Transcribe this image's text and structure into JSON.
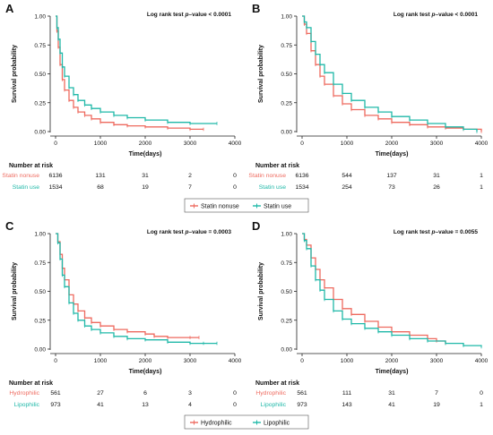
{
  "colors": {
    "red": "#EE6A5F",
    "teal": "#1FB8A8",
    "axis": "#222222"
  },
  "axis_titles": {
    "y": "Survival probability",
    "x": "Time(days)"
  },
  "risk_table_title": "Number at risk",
  "legends": {
    "top": [
      "Statin nonuse",
      "Statin use"
    ],
    "bottom": [
      "Hydrophilic",
      "Lipophilic"
    ]
  },
  "chart_data": [
    {
      "panel": "A",
      "type": "line",
      "title": "Log rank test p-value < 0.0001",
      "pvalue_prefix": "Log rank test ",
      "pvalue_italic": "p",
      "pvalue_suffix": "–value < 0.0001",
      "xlabel": "Time(days)",
      "ylabel": "Survival probability",
      "xlim": [
        0,
        4000
      ],
      "ylim": [
        0,
        1
      ],
      "xticks": [
        0,
        1000,
        2000,
        3000,
        4000
      ],
      "yticks": [
        "0.00",
        "0.25",
        "0.50",
        "0.75",
        "1.00"
      ],
      "series": [
        {
          "name": "Statin nonuse",
          "color": "red",
          "x": [
            0,
            30,
            60,
            100,
            150,
            200,
            300,
            400,
            500,
            650,
            800,
            1000,
            1300,
            1600,
            2000,
            2500,
            3000,
            3300
          ],
          "y": [
            1.0,
            0.87,
            0.73,
            0.58,
            0.45,
            0.36,
            0.27,
            0.21,
            0.17,
            0.14,
            0.11,
            0.08,
            0.06,
            0.05,
            0.04,
            0.03,
            0.02,
            0.02
          ]
        },
        {
          "name": "Statin use",
          "color": "teal",
          "x": [
            0,
            30,
            60,
            100,
            150,
            200,
            300,
            400,
            500,
            650,
            800,
            1000,
            1300,
            1600,
            2000,
            2500,
            3000,
            3600
          ],
          "y": [
            1.0,
            0.9,
            0.8,
            0.68,
            0.56,
            0.48,
            0.38,
            0.32,
            0.27,
            0.23,
            0.2,
            0.17,
            0.14,
            0.12,
            0.1,
            0.08,
            0.07,
            0.07
          ]
        }
      ],
      "risk_table": {
        "rows": [
          {
            "label": "Statin nonuse",
            "color": "red",
            "values": [
              "6136",
              "131",
              "31",
              "2",
              "0"
            ]
          },
          {
            "label": "Statin use",
            "color": "teal",
            "values": [
              "1534",
              "68",
              "19",
              "7",
              "0"
            ]
          }
        ]
      }
    },
    {
      "panel": "B",
      "type": "line",
      "title": "Log rank test p-value < 0.0001",
      "pvalue_prefix": "Log rank test ",
      "pvalue_italic": "p",
      "pvalue_suffix": "–value < 0.0001",
      "xlabel": "Time(days)",
      "ylabel": "Survival probability",
      "xlim": [
        0,
        4000
      ],
      "ylim": [
        0,
        1
      ],
      "xticks": [
        0,
        1000,
        2000,
        3000,
        4000
      ],
      "yticks": [
        "0.00",
        "0.25",
        "0.50",
        "0.75",
        "1.00"
      ],
      "series": [
        {
          "name": "Statin nonuse",
          "color": "red",
          "x": [
            0,
            50,
            100,
            200,
            300,
            400,
            500,
            700,
            900,
            1100,
            1400,
            1700,
            2000,
            2400,
            2800,
            3200,
            3600,
            4000
          ],
          "y": [
            1.0,
            0.93,
            0.85,
            0.7,
            0.58,
            0.48,
            0.41,
            0.31,
            0.24,
            0.19,
            0.14,
            0.11,
            0.08,
            0.06,
            0.04,
            0.03,
            0.02,
            0.0
          ]
        },
        {
          "name": "Statin use",
          "color": "teal",
          "x": [
            0,
            50,
            100,
            200,
            300,
            400,
            500,
            700,
            900,
            1100,
            1400,
            1700,
            2000,
            2400,
            2800,
            3200,
            3600,
            3900
          ],
          "y": [
            1.0,
            0.95,
            0.9,
            0.78,
            0.67,
            0.58,
            0.51,
            0.41,
            0.33,
            0.27,
            0.21,
            0.17,
            0.13,
            0.1,
            0.07,
            0.04,
            0.02,
            0.0
          ]
        }
      ],
      "risk_table": {
        "rows": [
          {
            "label": "Statin nonuse",
            "color": "red",
            "values": [
              "6136",
              "544",
              "137",
              "31",
              "1"
            ]
          },
          {
            "label": "Statin use",
            "color": "teal",
            "values": [
              "1534",
              "254",
              "73",
              "26",
              "1"
            ]
          }
        ]
      }
    },
    {
      "panel": "C",
      "type": "line",
      "title": "Log rank test p-value = 0.0003",
      "pvalue_prefix": "Log rank test ",
      "pvalue_italic": "p",
      "pvalue_suffix": "–value = 0.0003",
      "xlabel": "Time(days)",
      "ylabel": "Survival probability",
      "xlim": [
        0,
        4000
      ],
      "ylim": [
        0,
        1
      ],
      "xticks": [
        0,
        1000,
        2000,
        3000,
        4000
      ],
      "yticks": [
        "0.00",
        "0.25",
        "0.50",
        "0.75",
        "1.00"
      ],
      "series": [
        {
          "name": "Hydrophilic",
          "color": "red",
          "x": [
            0,
            50,
            100,
            150,
            200,
            300,
            400,
            500,
            650,
            800,
            1000,
            1300,
            1600,
            2000,
            2200,
            2500,
            3000,
            3200
          ],
          "y": [
            1.0,
            0.93,
            0.82,
            0.7,
            0.6,
            0.47,
            0.39,
            0.33,
            0.27,
            0.23,
            0.2,
            0.17,
            0.15,
            0.13,
            0.11,
            0.1,
            0.1,
            0.1
          ]
        },
        {
          "name": "Lipophilic",
          "color": "teal",
          "x": [
            0,
            50,
            100,
            150,
            200,
            300,
            400,
            500,
            650,
            800,
            1000,
            1300,
            1600,
            2000,
            2500,
            3000,
            3300,
            3600
          ],
          "y": [
            1.0,
            0.92,
            0.78,
            0.64,
            0.54,
            0.4,
            0.31,
            0.25,
            0.2,
            0.17,
            0.14,
            0.11,
            0.09,
            0.08,
            0.06,
            0.05,
            0.05,
            0.05
          ]
        }
      ],
      "risk_table": {
        "rows": [
          {
            "label": "Hydrophilic",
            "color": "red",
            "values": [
              "561",
              "27",
              "6",
              "3",
              "0"
            ]
          },
          {
            "label": "Lipophilic",
            "color": "teal",
            "values": [
              "973",
              "41",
              "13",
              "4",
              "0"
            ]
          }
        ]
      }
    },
    {
      "panel": "D",
      "type": "line",
      "title": "Log rank test p-value = 0.0055",
      "pvalue_prefix": "Log rank test ",
      "pvalue_italic": "p",
      "pvalue_suffix": "–value = 0.0055",
      "xlabel": "Time(days)",
      "ylabel": "Survival probability",
      "xlim": [
        0,
        4000
      ],
      "ylim": [
        0,
        1
      ],
      "xticks": [
        0,
        1000,
        2000,
        3000,
        4000
      ],
      "yticks": [
        "0.00",
        "0.25",
        "0.50",
        "0.75",
        "1.00"
      ],
      "series": [
        {
          "name": "Hydrophilic",
          "color": "red",
          "x": [
            0,
            50,
            100,
            200,
            300,
            400,
            500,
            700,
            900,
            1100,
            1400,
            1700,
            2000,
            2400,
            2800,
            3000,
            3200
          ],
          "y": [
            1.0,
            0.95,
            0.9,
            0.79,
            0.69,
            0.6,
            0.53,
            0.43,
            0.35,
            0.3,
            0.24,
            0.19,
            0.15,
            0.12,
            0.09,
            0.07,
            0.05
          ]
        },
        {
          "name": "Lipophilic",
          "color": "teal",
          "x": [
            0,
            50,
            100,
            200,
            300,
            400,
            500,
            700,
            900,
            1100,
            1400,
            1700,
            2000,
            2400,
            2800,
            3200,
            3600,
            4000
          ],
          "y": [
            1.0,
            0.94,
            0.87,
            0.72,
            0.6,
            0.51,
            0.43,
            0.33,
            0.26,
            0.22,
            0.18,
            0.15,
            0.12,
            0.09,
            0.07,
            0.05,
            0.03,
            0.02
          ]
        }
      ],
      "risk_table": {
        "rows": [
          {
            "label": "Hydrophilic",
            "color": "red",
            "values": [
              "561",
              "111",
              "31",
              "7",
              "0"
            ]
          },
          {
            "label": "Lipophilic",
            "color": "teal",
            "values": [
              "973",
              "143",
              "41",
              "19",
              "1"
            ]
          }
        ]
      }
    }
  ]
}
